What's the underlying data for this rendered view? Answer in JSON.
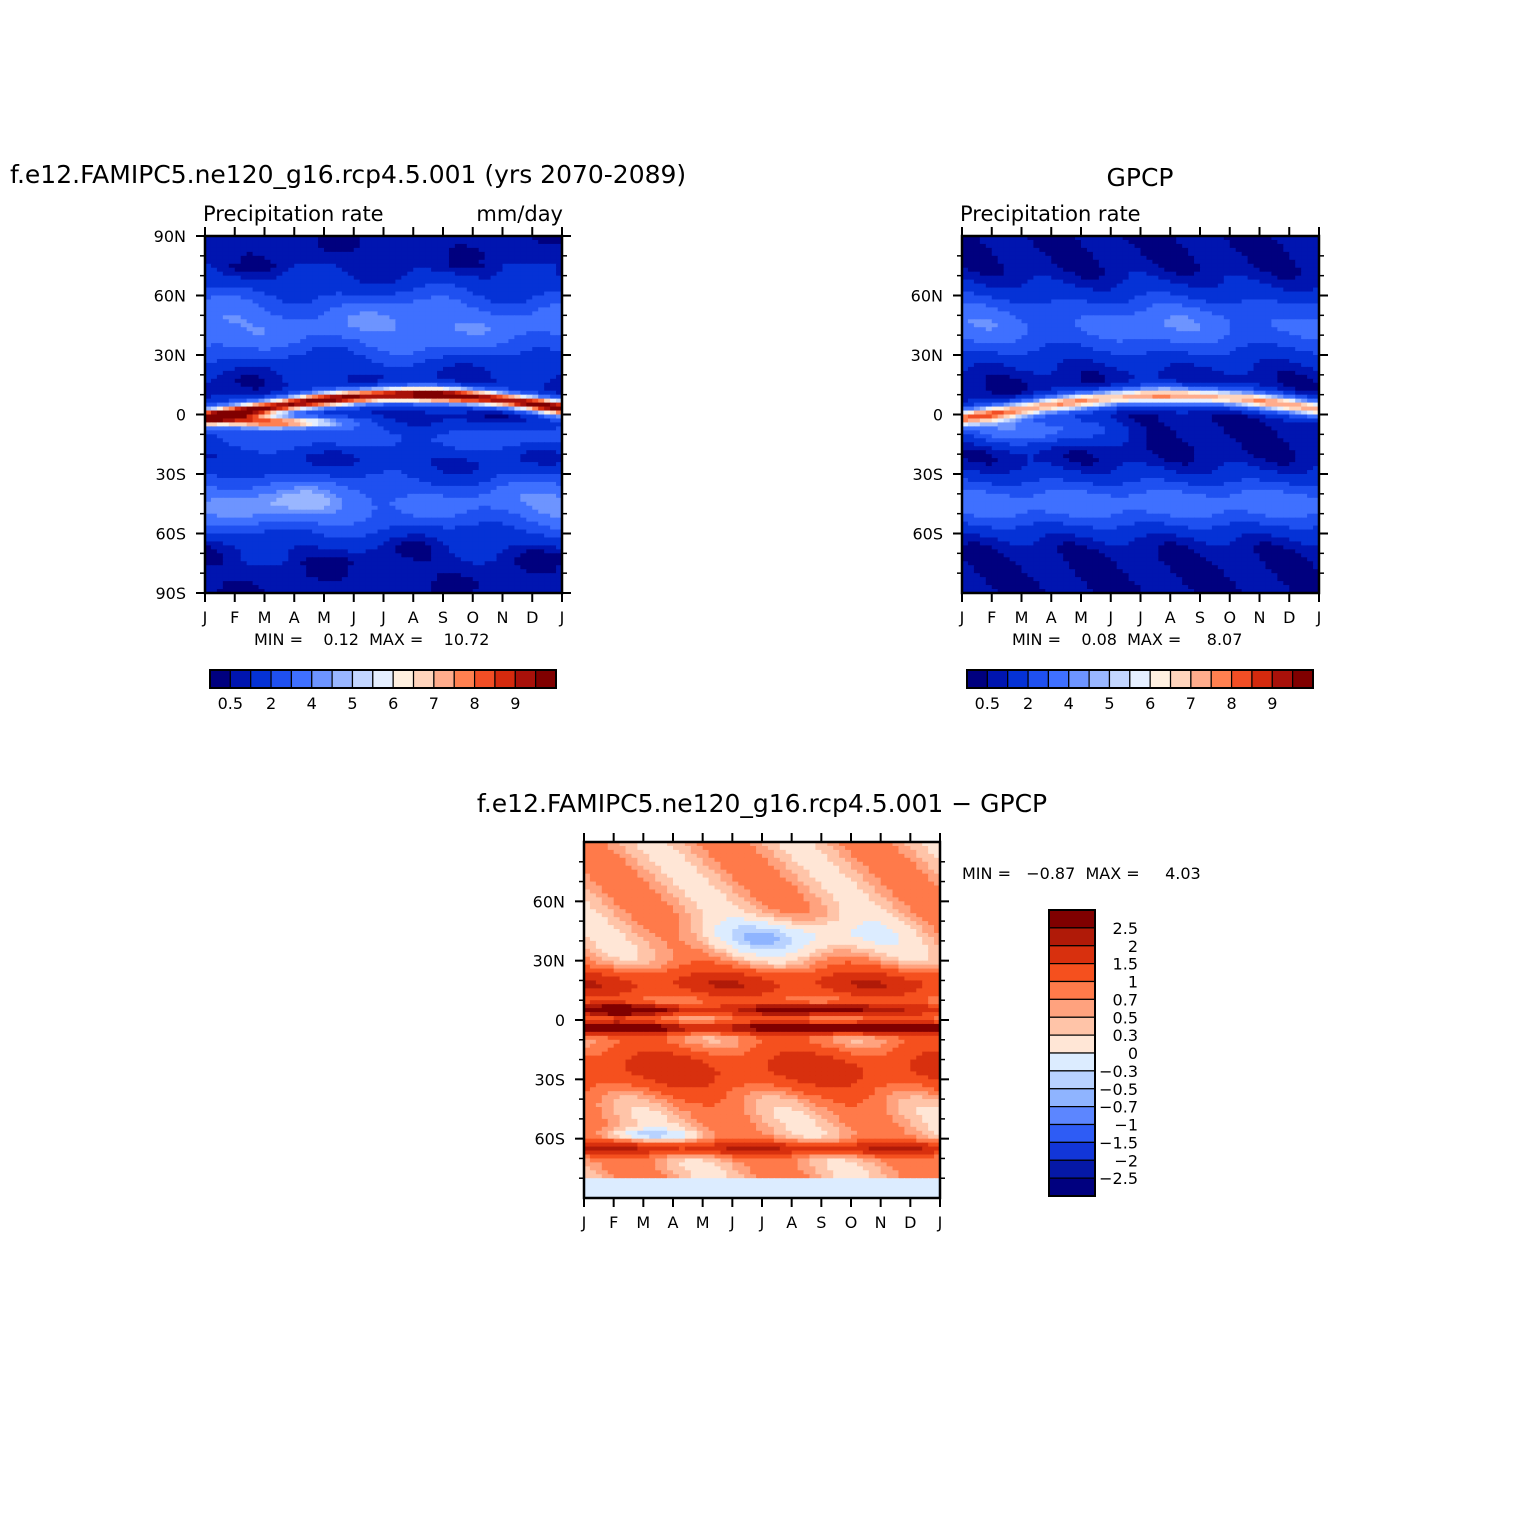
{
  "figure": {
    "panel_model": {
      "title": "f.e12.FAMIPC5.ne120_g16.rcp4.5.001 (yrs 2070-2089)",
      "left_label": "Precipitation rate",
      "right_label": "mm/day",
      "stats": "MIN =    0.12  MAX =    10.72"
    },
    "panel_obs": {
      "title": "GPCP",
      "left_label": "Precipitation rate",
      "stats": "MIN =    0.08  MAX =     8.07"
    },
    "panel_diff": {
      "title": "f.e12.FAMIPC5.ne120_g16.rcp4.5.001 − GPCP",
      "stats": "MIN =   −0.87  MAX =     4.03"
    }
  },
  "chart_data": [
    {
      "type": "heatmap",
      "title": "f.e12.FAMIPC5.ne120_g16.rcp4.5.001 (yrs 2070-2089)",
      "x_ticks": [
        "J",
        "F",
        "M",
        "A",
        "M",
        "J",
        "J",
        "A",
        "S",
        "O",
        "N",
        "D",
        "J"
      ],
      "y_ticks": [
        "90N",
        "60N",
        "30N",
        "0",
        "30S",
        "60S",
        "90S"
      ],
      "y_range": [
        -90,
        90
      ],
      "min": 0.12,
      "max": 10.72,
      "units": "mm/day",
      "colorbar_labels": [
        "0.5",
        "2",
        "4",
        "5",
        "6",
        "7",
        "8",
        "9"
      ],
      "palette": [
        "#00007f",
        "#0015b0",
        "#0532d6",
        "#1f50f0",
        "#3f70ff",
        "#6d94ff",
        "#99b6ff",
        "#c3d6ff",
        "#e5efff",
        "#fff0e0",
        "#ffd4bc",
        "#ffac8c",
        "#ff8050",
        "#f24e25",
        "#d42a0e",
        "#a8110a",
        "#800000"
      ]
    },
    {
      "type": "heatmap",
      "title": "GPCP",
      "x_ticks": [
        "J",
        "F",
        "M",
        "A",
        "M",
        "J",
        "J",
        "A",
        "S",
        "O",
        "N",
        "D",
        "J"
      ],
      "y_ticks": [
        "60N",
        "30N",
        "0",
        "30S",
        "60S"
      ],
      "y_range": [
        -90,
        90
      ],
      "min": 0.08,
      "max": 8.07,
      "colorbar_labels": [
        "0.5",
        "2",
        "4",
        "5",
        "6",
        "7",
        "8",
        "9"
      ],
      "palette": [
        "#00007f",
        "#0015b0",
        "#0532d6",
        "#1f50f0",
        "#3f70ff",
        "#6d94ff",
        "#99b6ff",
        "#c3d6ff",
        "#e5efff",
        "#fff0e0",
        "#ffd4bc",
        "#ffac8c",
        "#ff8050",
        "#f24e25",
        "#d42a0e",
        "#a8110a",
        "#800000"
      ]
    },
    {
      "type": "heatmap",
      "title": "f.e12.FAMIPC5.ne120_g16.rcp4.5.001 − GPCP",
      "x_ticks": [
        "J",
        "F",
        "M",
        "A",
        "M",
        "J",
        "J",
        "A",
        "S",
        "O",
        "N",
        "D",
        "J"
      ],
      "y_ticks": [
        "60N",
        "30N",
        "0",
        "30S",
        "60S"
      ],
      "y_range": [
        -90,
        90
      ],
      "min": -0.87,
      "max": 4.03,
      "colorbar_labels": [
        "2.5",
        "2",
        "1.5",
        "1",
        "0.7",
        "0.5",
        "0.3",
        "0",
        "−0.3",
        "−0.5",
        "−0.7",
        "−1",
        "−1.5",
        "−2",
        "−2.5"
      ],
      "palette": [
        "#800000",
        "#b01a08",
        "#d8300e",
        "#f5501e",
        "#ff7a4a",
        "#ffa27e",
        "#ffc4a8",
        "#ffe6d6",
        "#dcecff",
        "#b8d2ff",
        "#8fb4ff",
        "#5c86ff",
        "#2e5cf5",
        "#1236d8",
        "#0518a6",
        "#00007f"
      ]
    }
  ]
}
